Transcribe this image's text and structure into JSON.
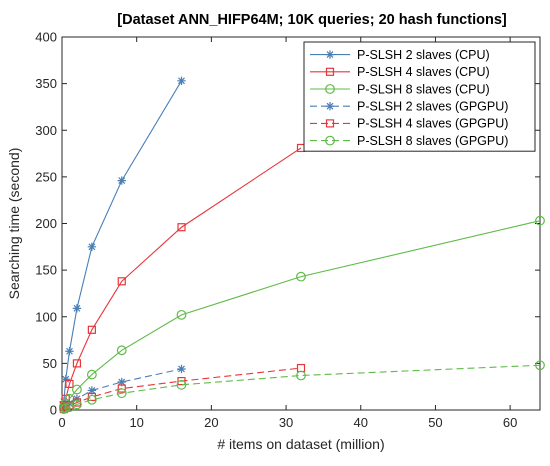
{
  "chart_data": {
    "type": "line",
    "title": "[Dataset ANN_HIFP64M; 10K queries; 20 hash functions]",
    "xlabel": "# items on dataset (million)",
    "ylabel": "Searching time (second)",
    "xlim": [
      0,
      64
    ],
    "ylim": [
      0,
      400
    ],
    "xticks": [
      "0",
      "10",
      "20",
      "30",
      "40",
      "50",
      "60"
    ],
    "yticks": [
      "0",
      "50",
      "100",
      "150",
      "200",
      "250",
      "300",
      "350",
      "400"
    ],
    "grid": false,
    "legend_position": "top-right",
    "series": [
      {
        "name": "P-SLSH 2 slaves (CPU)",
        "color": "#4a7fb5",
        "dash": "solid",
        "marker": "star",
        "x": [
          0.25,
          0.5,
          1,
          2,
          4,
          8,
          16
        ],
        "y": [
          9,
          33,
          63,
          109,
          175,
          246,
          353
        ]
      },
      {
        "name": "P-SLSH 4 slaves (CPU)",
        "color": "#e8353a",
        "dash": "solid",
        "marker": "square",
        "x": [
          0.25,
          0.5,
          1,
          2,
          4,
          8,
          16,
          32
        ],
        "y": [
          5,
          12,
          28,
          50,
          86,
          138,
          196,
          281
        ]
      },
      {
        "name": "P-SLSH 8 slaves (CPU)",
        "color": "#5fbb48",
        "dash": "solid",
        "marker": "circle",
        "x": [
          0.25,
          0.5,
          1,
          2,
          4,
          8,
          16,
          32,
          64
        ],
        "y": [
          3,
          7,
          12,
          22,
          38,
          64,
          102,
          143,
          203
        ]
      },
      {
        "name": "P-SLSH 2 slaves (GPGPU)",
        "color": "#4a7fb5",
        "dash": "dashed",
        "marker": "star",
        "x": [
          0.25,
          0.5,
          1,
          2,
          4,
          8,
          16
        ],
        "y": [
          2,
          4,
          7,
          12,
          21,
          30,
          44
        ]
      },
      {
        "name": "P-SLSH 4 slaves (GPGPU)",
        "color": "#e8353a",
        "dash": "dashed",
        "marker": "square",
        "x": [
          0.25,
          0.5,
          1,
          2,
          4,
          8,
          16,
          32
        ],
        "y": [
          1,
          3,
          5,
          8,
          14,
          23,
          31,
          45
        ]
      },
      {
        "name": "P-SLSH 8 slaves (GPGPU)",
        "color": "#5fbb48",
        "dash": "dashed",
        "marker": "circle",
        "x": [
          0.25,
          0.5,
          1,
          2,
          4,
          8,
          16,
          32,
          64
        ],
        "y": [
          1,
          2,
          3,
          6,
          11,
          18,
          27,
          37,
          48
        ]
      }
    ]
  }
}
